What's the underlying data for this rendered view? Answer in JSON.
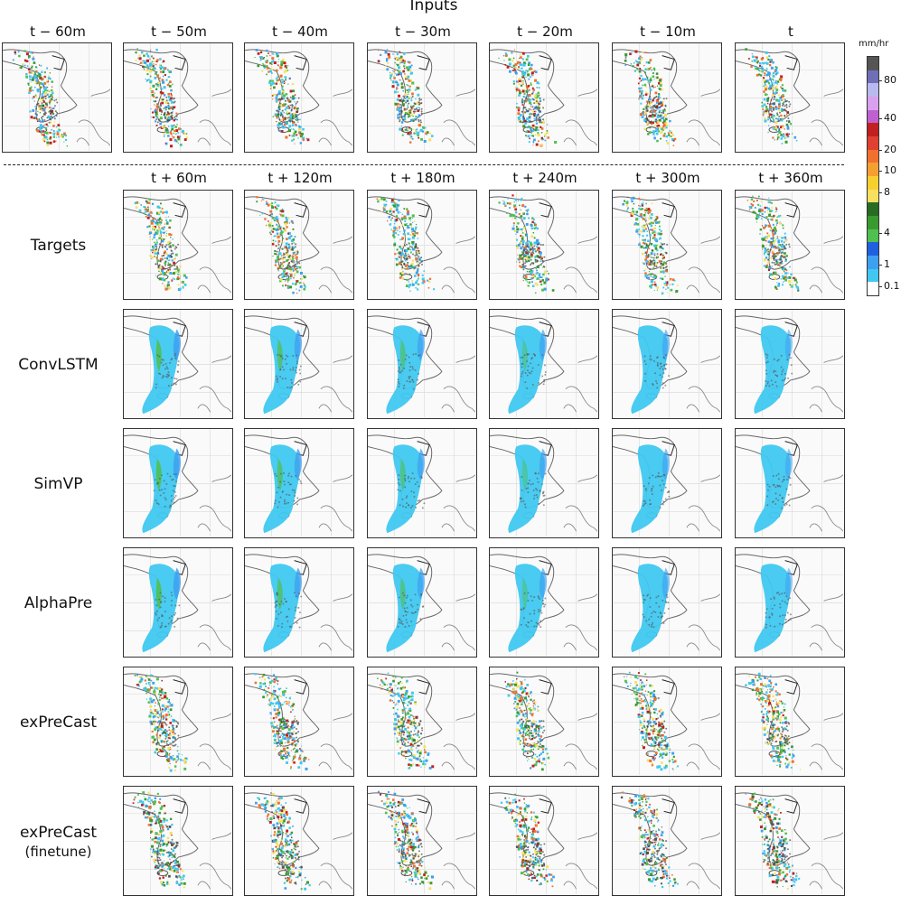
{
  "figure": {
    "title": "Inputs",
    "input_columns": [
      "t − 60m",
      "t − 50m",
      "t − 40m",
      "t − 30m",
      "t − 20m",
      "t − 10m",
      "t"
    ],
    "output_columns": [
      "t + 60m",
      "t + 120m",
      "t + 180m",
      "t + 240m",
      "t + 300m",
      "t + 360m"
    ],
    "rows": [
      {
        "label": "Targets",
        "sub": ""
      },
      {
        "label": "ConvLSTM",
        "sub": ""
      },
      {
        "label": "SimVP",
        "sub": ""
      },
      {
        "label": "AlphaPre",
        "sub": ""
      },
      {
        "label": "exPreCast",
        "sub": ""
      },
      {
        "label": "exPreCast",
        "sub": "(finetune)"
      }
    ]
  },
  "colorbar": {
    "unit": "mm/hr",
    "ticks": [
      "80",
      "40",
      "20",
      "10",
      "8",
      "4",
      "1",
      "0.1"
    ],
    "colors": [
      "#555555",
      "#6f6fb8",
      "#b9b9ef",
      "#d9a0ee",
      "#c060d0",
      "#c02020",
      "#e04030",
      "#f07030",
      "#f4a030",
      "#f7d030",
      "#f7e060",
      "#286c24",
      "#3a9a30",
      "#50c050",
      "#2060e0",
      "#3ea0f0",
      "#40c8f0",
      "#ffffff"
    ]
  }
}
